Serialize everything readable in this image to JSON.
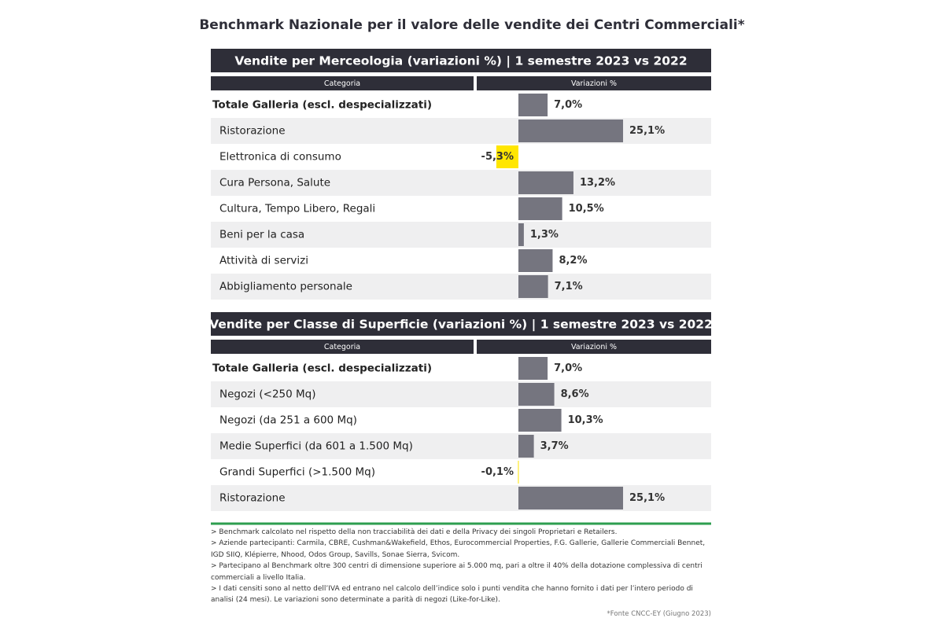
{
  "title": "Benchmark Nazionale per il valore delle vendite dei Centri Commerciali*",
  "chart_data": [
    {
      "type": "bar",
      "orientation": "horizontal",
      "title": "Vendite per Merceologia (variazioni %) | 1 semestre 2023 vs 2022",
      "category_header": "Categoria",
      "value_header": "Variazioni %",
      "categories": [
        "Totale Galleria (escl. despecializzati)",
        "Ristorazione",
        "Elettronica di consumo",
        "Cura Persona, Salute",
        "Cultura, Tempo Libero, Regali",
        "Beni per la casa",
        "Attività di servizi",
        "Abbigliamento personale"
      ],
      "values": [
        7.0,
        25.1,
        -5.3,
        13.2,
        10.5,
        1.3,
        8.2,
        7.1
      ],
      "value_labels": [
        "7,0%",
        "25,1%",
        "-5,3%",
        "13,2%",
        "10,5%",
        "1,3%",
        "8,2%",
        "7,1%"
      ],
      "color": "#75757f",
      "negative_color": "#ffe600"
    },
    {
      "type": "bar",
      "orientation": "horizontal",
      "title": "Vendite per Classe di Superficie (variazioni %) | 1 semestre 2023 vs 2022",
      "category_header": "Categoria",
      "value_header": "Variazioni %",
      "categories": [
        "Totale Galleria (escl. despecializzati)",
        "Negozi (<250 Mq)",
        "Negozi (da 251 a 600 Mq)",
        "Medie Superfici (da 601 a 1.500 Mq)",
        "Grandi Superfici (>1.500 Mq)",
        "Ristorazione"
      ],
      "values": [
        7.0,
        8.6,
        10.3,
        3.7,
        -0.1,
        25.1
      ],
      "value_labels": [
        "7,0%",
        "8,6%",
        "10,3%",
        "3,7%",
        "-0,1%",
        "25,1%"
      ],
      "color": "#75757f",
      "negative_color": "#ffe600"
    }
  ],
  "notes": [
    "> Benchmark calcolato nel rispetto della non tracciabilità dei dati e della Privacy dei singoli Proprietari e Retailers.",
    "> Aziende partecipanti: Carmila, CBRE, Cushman&Wakefield, Ethos, Eurocommercial Properties, F.G. Gallerie, Gallerie Commerciali Bennet, IGD SIIQ, Klépierre, Nhood, Odos Group, Savills, Sonae Sierra, Svicom.",
    "> Partecipano al Benchmark oltre 300 centri di dimensione superiore ai 5.000 mq, pari a oltre il 40% della dotazione complessiva di centri commerciali a livello Italia.",
    "> I dati censiti sono al netto dell’IVA ed entrano nel calcolo dell’indice solo i punti vendita che hanno fornito i dati per l’intero periodo di analisi (24 mesi). Le variazioni sono determinate a parità di negozi (Like-for-Like)."
  ],
  "source": "*Fonte CNCC-EY (Giugno 2023)"
}
